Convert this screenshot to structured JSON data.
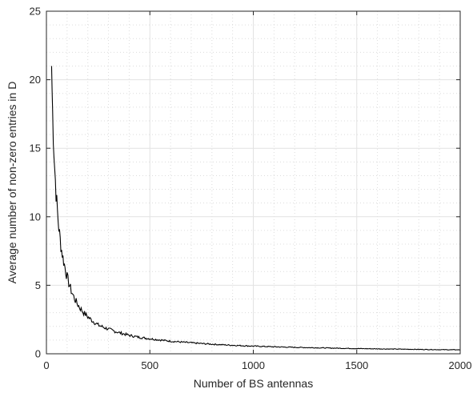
{
  "chart_data": {
    "type": "line",
    "title": "",
    "xlabel": "Number of BS antennas",
    "ylabel": "Average number of non-zero entries in D",
    "xlim": [
      0,
      2000
    ],
    "ylim": [
      0,
      25
    ],
    "xticks": [
      0,
      500,
      1000,
      1500,
      2000
    ],
    "yticks": [
      0,
      5,
      10,
      15,
      20,
      25
    ],
    "xtick_labels": [
      "0",
      "500",
      "1000",
      "1500",
      "2000"
    ],
    "ytick_labels": [
      "0",
      "5",
      "10",
      "15",
      "20",
      "25"
    ],
    "grid": true,
    "minor_grid": true,
    "legend": "none",
    "series": [
      {
        "color": "#000000",
        "x": [
          25,
          30,
          40,
          50,
          60,
          70,
          80,
          90,
          100,
          120,
          140,
          160,
          180,
          200,
          250,
          300,
          350,
          400,
          450,
          500,
          600,
          700,
          800,
          900,
          1000,
          1100,
          1200,
          1300,
          1400,
          1500,
          1600,
          1700,
          1800,
          1900,
          2000
        ],
        "values": [
          21.0,
          17.6,
          13.6,
          11.0,
          9.2,
          7.9,
          7.0,
          6.3,
          5.6,
          4.6,
          3.9,
          3.4,
          3.0,
          2.7,
          2.1,
          1.8,
          1.55,
          1.35,
          1.2,
          1.1,
          0.92,
          0.8,
          0.7,
          0.62,
          0.56,
          0.51,
          0.47,
          0.44,
          0.41,
          0.38,
          0.36,
          0.34,
          0.32,
          0.3,
          0.29
        ]
      }
    ]
  }
}
